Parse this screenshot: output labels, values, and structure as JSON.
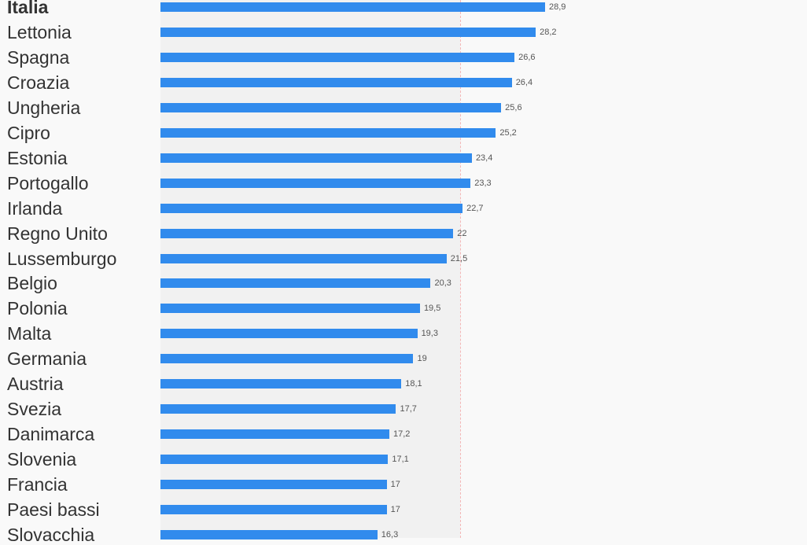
{
  "chart_data": {
    "type": "bar",
    "orientation": "horizontal",
    "categories": [
      "Italia",
      "Lettonia",
      "Spagna",
      "Croazia",
      "Ungheria",
      "Cipro",
      "Estonia",
      "Portogallo",
      "Irlanda",
      "Regno Unito",
      "Lussemburgo",
      "Belgio",
      "Polonia",
      "Malta",
      "Germania",
      "Austria",
      "Svezia",
      "Danimarca",
      "Slovenia",
      "Francia",
      "Paesi bassi",
      "Slovacchia"
    ],
    "values": [
      28.9,
      28.2,
      26.6,
      26.4,
      25.6,
      25.2,
      23.4,
      23.3,
      22.7,
      22,
      21.5,
      20.3,
      19.5,
      19.3,
      19,
      18.1,
      17.7,
      17.2,
      17.1,
      17,
      17,
      16.3
    ],
    "value_labels": [
      "28,9",
      "28,2",
      "26,6",
      "26,4",
      "25,6",
      "25,2",
      "23,4",
      "23,3",
      "22,7",
      "22",
      "21,5",
      "20,3",
      "19,5",
      "19,3",
      "19",
      "18,1",
      "17,7",
      "17,2",
      "17,1",
      "17",
      "17",
      "16,3"
    ],
    "highlight": "Italia",
    "reference_line": 22.5,
    "xlim": [
      0,
      60.5
    ],
    "colors": {
      "bar": "#318bed",
      "reference": "#f4b8b8",
      "band": "#f1f1f1"
    }
  }
}
